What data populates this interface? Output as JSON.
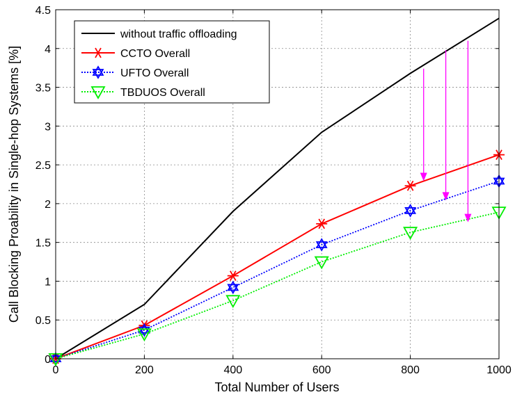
{
  "chart_data": {
    "type": "line",
    "title": "",
    "xlabel": "Total Number of Users",
    "ylabel": "Call Blocking Proability in Single-hop Systems [%]",
    "x": [
      0,
      200,
      400,
      600,
      800,
      1000
    ],
    "xlim": [
      0,
      1000
    ],
    "ylim": [
      0,
      4.5
    ],
    "xticks": [
      "0",
      "200",
      "400",
      "600",
      "800",
      "1000"
    ],
    "yticks": [
      "0",
      "0.5",
      "1",
      "1.5",
      "2",
      "2.5",
      "3",
      "3.5",
      "4",
      "4.5"
    ],
    "grid": true,
    "legend_position": "top-left",
    "series": [
      {
        "name": "without traffic offloading",
        "values": [
          0,
          0.7,
          1.9,
          2.92,
          3.68,
          4.39
        ],
        "color": "#000000",
        "marker": "none",
        "dash": "solid"
      },
      {
        "name": "CCTO Overall",
        "values": [
          0,
          0.43,
          1.07,
          1.74,
          2.23,
          2.63
        ],
        "color": "#ff0000",
        "marker": "asterisk",
        "dash": "solid"
      },
      {
        "name": "UFTO Overall",
        "values": [
          0,
          0.37,
          0.92,
          1.47,
          1.91,
          2.29
        ],
        "color": "#0000ff",
        "marker": "hexagram",
        "dash": "dotted"
      },
      {
        "name": "TBDUOS Overall",
        "values": [
          0,
          0.32,
          0.75,
          1.25,
          1.63,
          1.89
        ],
        "color": "#00ee00",
        "marker": "triangle-down",
        "dash": "dotted"
      }
    ],
    "annotations": [
      {
        "type": "arrow",
        "color": "#ff00ff",
        "x": 830,
        "y_from": 3.74,
        "y_to": 2.29
      },
      {
        "type": "arrow",
        "color": "#ff00ff",
        "x": 880,
        "y_from": 3.98,
        "y_to": 2.04
      },
      {
        "type": "arrow",
        "color": "#ff00ff",
        "x": 930,
        "y_from": 4.1,
        "y_to": 1.76
      }
    ]
  }
}
